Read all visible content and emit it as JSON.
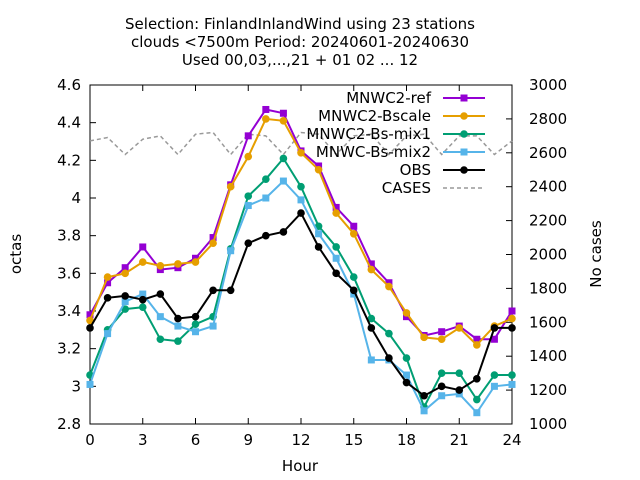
{
  "chart_data": {
    "type": "line",
    "title_lines": [
      "Selection: FinlandInlandWind using    23 stations",
      "clouds <7500m   Period: 20240601-20240630",
      "Used 00,03,...,21 + 01 02 ... 12"
    ],
    "xlabel": "Hour",
    "ylabel": "octas",
    "y2label": "No cases",
    "xlim": [
      0,
      24
    ],
    "ylim": [
      2.8,
      4.6
    ],
    "y2lim": [
      1000,
      3000
    ],
    "xticks": [
      "0",
      "3",
      "6",
      "9",
      "12",
      "15",
      "18",
      "21",
      "24"
    ],
    "yticks": [
      "2.8",
      "3",
      "3.2",
      "3.4",
      "3.6",
      "3.8",
      "4",
      "4.2",
      "4.4",
      "4.6"
    ],
    "y2ticks": [
      "1000",
      "1200",
      "1400",
      "1600",
      "1800",
      "2000",
      "2200",
      "2400",
      "2600",
      "2800",
      "3000"
    ],
    "x": [
      0,
      1,
      2,
      3,
      4,
      5,
      6,
      7,
      8,
      9,
      10,
      11,
      12,
      13,
      14,
      15,
      16,
      17,
      18,
      19,
      20,
      21,
      22,
      23,
      24
    ],
    "legend_position": "top-right",
    "series": [
      {
        "name": "MNWC2-ref",
        "color": "#9400d3",
        "marker": "square",
        "axis": "left",
        "values": [
          3.38,
          3.55,
          3.63,
          3.74,
          3.62,
          3.63,
          3.68,
          3.79,
          4.07,
          4.33,
          4.47,
          4.45,
          4.25,
          4.17,
          3.95,
          3.85,
          3.65,
          3.55,
          3.37,
          3.27,
          3.29,
          3.32,
          3.25,
          3.25,
          3.4
        ]
      },
      {
        "name": "MNWC2-Bscale",
        "color": "#e69f00",
        "marker": "circle",
        "axis": "left",
        "values": [
          3.35,
          3.58,
          3.6,
          3.66,
          3.64,
          3.65,
          3.66,
          3.76,
          4.06,
          4.22,
          4.42,
          4.41,
          4.24,
          4.15,
          3.92,
          3.81,
          3.62,
          3.53,
          3.39,
          3.26,
          3.25,
          3.31,
          3.22,
          3.32,
          3.36
        ]
      },
      {
        "name": "MNWC2-Bs-mix1",
        "color": "#009e73",
        "marker": "circle",
        "axis": "left",
        "values": [
          3.06,
          3.3,
          3.41,
          3.42,
          3.25,
          3.24,
          3.33,
          3.37,
          3.73,
          4.01,
          4.1,
          4.21,
          4.06,
          3.85,
          3.74,
          3.58,
          3.36,
          3.28,
          3.15,
          2.89,
          3.07,
          3.07,
          2.93,
          3.06,
          3.06
        ]
      },
      {
        "name": "MNWC-Bs-mix2",
        "color": "#56b4e9",
        "marker": "square",
        "axis": "left",
        "values": [
          3.01,
          3.28,
          3.45,
          3.49,
          3.37,
          3.32,
          3.29,
          3.32,
          3.72,
          3.96,
          4.0,
          4.09,
          3.99,
          3.81,
          3.68,
          3.49,
          3.14,
          3.14,
          3.06,
          2.87,
          2.95,
          2.96,
          2.86,
          3.0,
          3.01
        ]
      },
      {
        "name": "OBS",
        "color": "#000000",
        "marker": "circle",
        "axis": "left",
        "values": [
          3.31,
          3.47,
          3.48,
          3.46,
          3.49,
          3.36,
          3.37,
          3.51,
          3.51,
          3.76,
          3.8,
          3.82,
          3.92,
          3.74,
          3.6,
          3.51,
          3.31,
          3.15,
          3.02,
          2.95,
          3.0,
          2.98,
          3.04,
          3.31,
          3.31
        ]
      },
      {
        "name": "CASES",
        "color": "#999999",
        "marker": "none",
        "dashed": true,
        "axis": "right",
        "values": [
          2670,
          2690,
          2590,
          2680,
          2700,
          2590,
          2710,
          2720,
          2590,
          2710,
          2700,
          2590,
          2720,
          2710,
          2590,
          2700,
          2710,
          2590,
          2700,
          2710,
          2590,
          2700,
          2700,
          2590,
          2670
        ]
      }
    ]
  }
}
